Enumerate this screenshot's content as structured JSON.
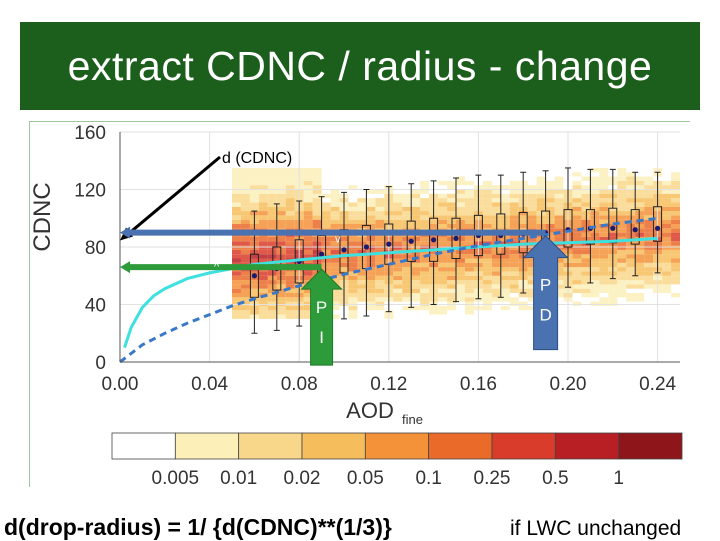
{
  "title": "extract CDNC / radius - change",
  "footer": {
    "formula": "d(drop-radius) = 1/ {d(CDNC)**(1/3)}",
    "note": "if LWC unchanged"
  },
  "annotations": {
    "d_label": "d (CDNC)",
    "v_mark": "v",
    "caret_mark": "^",
    "pi_label_1": "P",
    "pi_label_2": "I",
    "pd_label_1": "P",
    "pd_label_2": "D"
  },
  "colors": {
    "title_bg": "#1c5e1c",
    "arrow_blue": "#4a72b0",
    "arrow_green": "#2e9b3a",
    "cyan_fit": "#3ee0e0",
    "dashed_fit": "#3a78c8",
    "median_dot": "#1a1a6e"
  },
  "chart_data": {
    "type": "scatter",
    "xlabel": "AOD",
    "xlabel_sub": "fine",
    "ylabel": "CDNC",
    "xlim": [
      0.0,
      0.25
    ],
    "ylim": [
      0,
      160
    ],
    "xticks": [
      "0.00",
      "0.04",
      "0.08",
      "0.12",
      "0.16",
      "0.20",
      "0.24"
    ],
    "xtick_values": [
      0.0,
      0.04,
      0.08,
      0.12,
      0.16,
      0.2,
      0.24
    ],
    "yticks": [
      "0",
      "40",
      "80",
      "120",
      "160"
    ],
    "ytick_values": [
      0,
      40,
      80,
      120,
      160
    ],
    "grid": true,
    "series": [
      {
        "kind": "boxplot",
        "x": [
          0.06,
          0.07,
          0.08,
          0.09,
          0.1,
          0.11,
          0.12,
          0.13,
          0.14,
          0.15,
          0.16,
          0.17,
          0.18,
          0.19,
          0.2,
          0.21,
          0.22,
          0.23,
          0.24
        ],
        "median": [
          60,
          65,
          70,
          75,
          78,
          80,
          82,
          84,
          85,
          86,
          88,
          88,
          89,
          90,
          92,
          93,
          93,
          92,
          93
        ],
        "q1": [
          45,
          50,
          55,
          60,
          62,
          65,
          68,
          70,
          70,
          72,
          74,
          75,
          76,
          78,
          80,
          82,
          83,
          82,
          84
        ],
        "q3": [
          75,
          80,
          85,
          88,
          92,
          95,
          96,
          98,
          100,
          100,
          102,
          103,
          104,
          105,
          106,
          106,
          107,
          106,
          108
        ],
        "whisker_low": [
          20,
          22,
          25,
          28,
          30,
          32,
          35,
          38,
          40,
          42,
          44,
          45,
          48,
          50,
          52,
          55,
          58,
          60,
          62
        ],
        "whisker_high": [
          105,
          110,
          112,
          115,
          118,
          120,
          122,
          124,
          126,
          128,
          130,
          130,
          132,
          133,
          135,
          134,
          134,
          132,
          132
        ]
      },
      {
        "kind": "line",
        "style": "solid",
        "x": [
          0.002,
          0.005,
          0.01,
          0.015,
          0.02,
          0.03,
          0.04,
          0.05,
          0.06,
          0.08,
          0.1,
          0.12,
          0.14,
          0.16,
          0.18,
          0.2,
          0.22,
          0.24
        ],
        "y": [
          10,
          24,
          38,
          46,
          51,
          58,
          62,
          65,
          68,
          71,
          74,
          76,
          78,
          80,
          82,
          83,
          84,
          86
        ]
      },
      {
        "kind": "line",
        "style": "dashed",
        "x": [
          0.0,
          0.01,
          0.02,
          0.03,
          0.04,
          0.05,
          0.06,
          0.08,
          0.1,
          0.12,
          0.14,
          0.16,
          0.18,
          0.2,
          0.22,
          0.24
        ],
        "y": [
          0,
          12,
          20,
          27,
          33,
          39,
          44,
          53,
          61,
          68,
          75,
          81,
          86,
          91,
          96,
          100
        ]
      }
    ],
    "colorbar": {
      "labels": [
        "0.005",
        "0.01",
        "0.02",
        "0.05",
        "0.1",
        "0.25",
        "0.5",
        "1"
      ],
      "colors": [
        "#ffffff",
        "#fcefb8",
        "#f9d78a",
        "#f6bd5c",
        "#f39239",
        "#ea6a2a",
        "#d93c2a",
        "#b81f25",
        "#8e1519"
      ]
    }
  }
}
